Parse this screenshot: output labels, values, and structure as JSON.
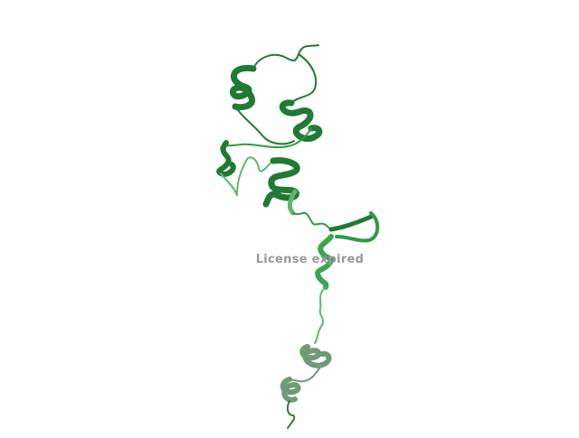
{
  "scene": {
    "subject": "protein-ribbon-cartoon",
    "background_color": "#ffffff",
    "ribbon_colors": {
      "dark": "#1f7a33",
      "mid": "#2f9a45",
      "light": "#5cb86c",
      "faded": "#6e9a76"
    }
  },
  "watermark": {
    "text": "License expired",
    "color": "#9a9a9a"
  }
}
